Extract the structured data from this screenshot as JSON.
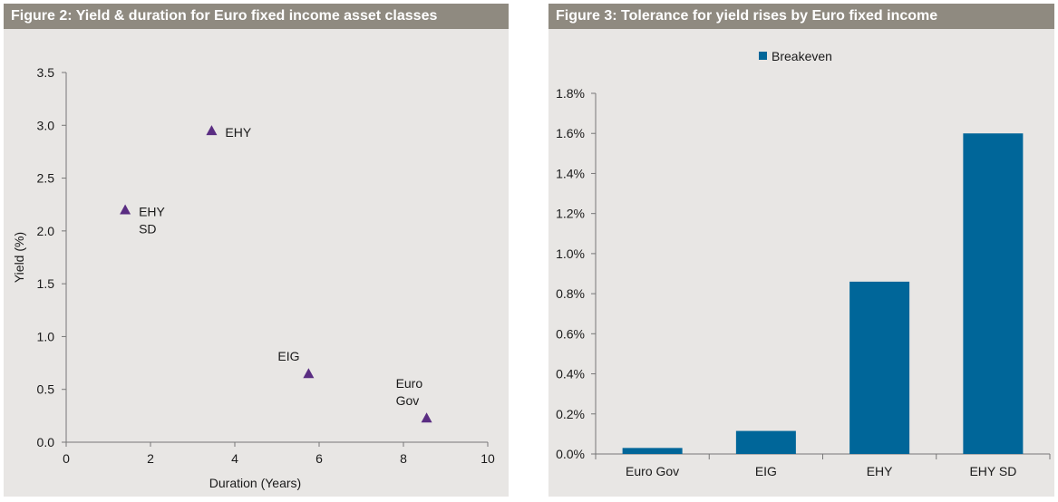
{
  "chart_data": [
    {
      "type": "scatter",
      "title": "Figure 2: Yield & duration for Euro fixed income asset classes",
      "xlabel": "Duration (Years)",
      "ylabel": "Yield (%)",
      "xlim": [
        0,
        10
      ],
      "ylim": [
        0,
        3.5
      ],
      "xticks": [
        "0",
        "2",
        "4",
        "6",
        "8",
        "10"
      ],
      "yticks": [
        "0.0",
        "0.5",
        "1.0",
        "1.5",
        "2.0",
        "2.5",
        "3.0",
        "3.5"
      ],
      "marker_color": "#5a2d82",
      "points": [
        {
          "label": [
            "EHY"
          ],
          "x": 3.45,
          "y": 2.95,
          "label_side": "right"
        },
        {
          "label": [
            "EHY",
            "SD"
          ],
          "x": 1.4,
          "y": 2.2,
          "label_side": "right"
        },
        {
          "label": [
            "EIG"
          ],
          "x": 5.75,
          "y": 0.65,
          "label_side": "above-left"
        },
        {
          "label": [
            "Euro",
            "Gov"
          ],
          "x": 8.55,
          "y": 0.23,
          "label_side": "above-left"
        }
      ],
      "grid": false
    },
    {
      "type": "bar",
      "title": "Figure 3: Tolerance for yield rises by Euro fixed income",
      "legend_position": "top",
      "categories": [
        "Euro Gov",
        "EIG",
        "EHY",
        "EHY SD"
      ],
      "series": [
        {
          "name": "Breakeven",
          "color": "#006699",
          "values": [
            0.03,
            0.115,
            0.86,
            1.6
          ]
        }
      ],
      "ylim": [
        0,
        1.8
      ],
      "yticks": [
        "0.0%",
        "0.2%",
        "0.4%",
        "0.6%",
        "0.8%",
        "1.0%",
        "1.2%",
        "1.4%",
        "1.6%",
        "1.8%"
      ],
      "grid": false
    }
  ]
}
